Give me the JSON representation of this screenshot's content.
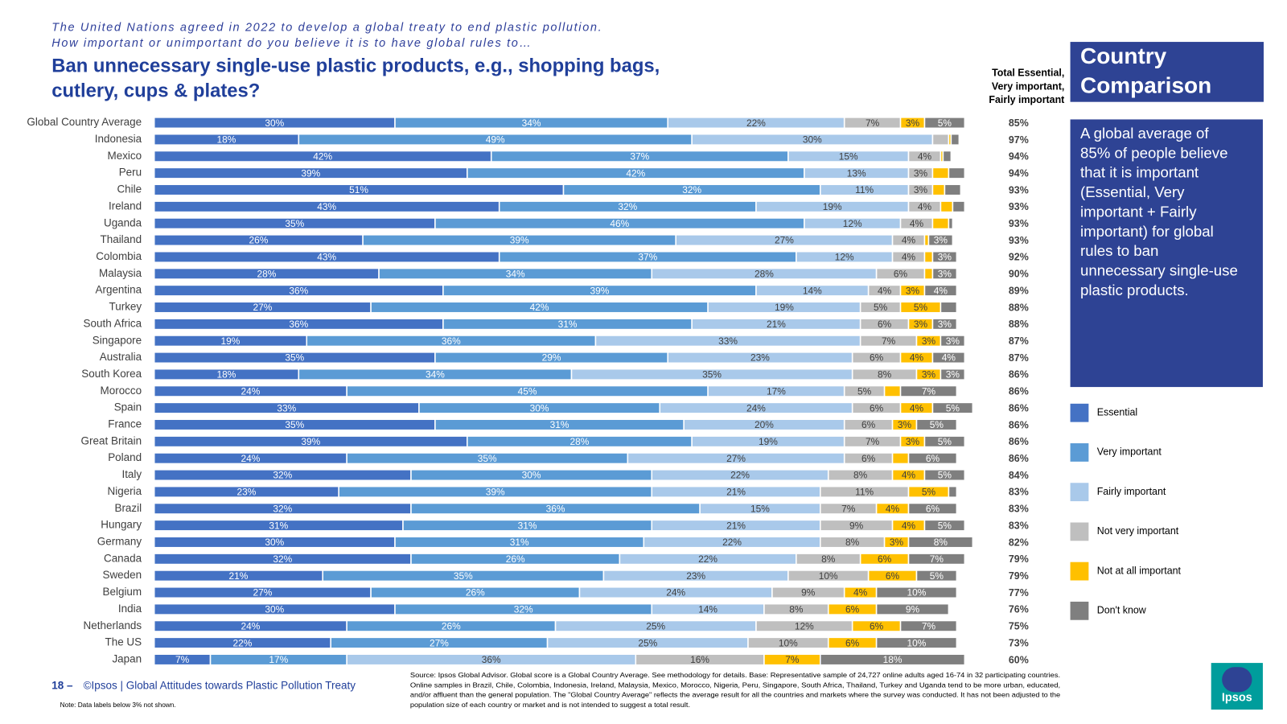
{
  "chart_data": {
    "type": "bar",
    "orientation": "horizontal",
    "stacked": true,
    "subtitle": [
      "The United Nations agreed in 2022 to develop a global treaty to end plastic pollution.",
      "How important or unimportant do you believe it is to have global rules to…"
    ],
    "title": [
      "Ban unnecessary single-use plastic products, e.g., shopping bags,",
      "cutlery, cups & plates?"
    ],
    "categories": [
      "Global Country Average",
      "Indonesia",
      "Mexico",
      "Peru",
      "Chile",
      "Ireland",
      "Uganda",
      "Thailand",
      "Colombia",
      "Malaysia",
      "Argentina",
      "Turkey",
      "South Africa",
      "Singapore",
      "Australia",
      "South Korea",
      "Morocco",
      "Spain",
      "France",
      "Great Britain",
      "Poland",
      "Italy",
      "Nigeria",
      "Brazil",
      "Hungary",
      "Germany",
      "Canada",
      "Sweden",
      "Belgium",
      "India",
      "Netherlands",
      "The US",
      "Japan"
    ],
    "series": [
      {
        "name": "Essential",
        "color": "#4472c4",
        "values": [
          30,
          18,
          42,
          39,
          51,
          43,
          35,
          26,
          43,
          28,
          36,
          27,
          36,
          19,
          35,
          18,
          24,
          33,
          35,
          39,
          24,
          32,
          23,
          32,
          31,
          30,
          32,
          21,
          27,
          30,
          24,
          22,
          7
        ],
        "value_labels": [
          "30%",
          "18%",
          "42%",
          "39%",
          "51%",
          "43%",
          "35%",
          "26%",
          "43%",
          "28%",
          "36%",
          "27%",
          "36%",
          "19%",
          "35%",
          "18%",
          "24%",
          "33%",
          "35%",
          "39%",
          "24%",
          "32%",
          "23%",
          "32%",
          "31%",
          "30%",
          "32%",
          "21%",
          "27%",
          "30%",
          "24%",
          "22%",
          "7%"
        ]
      },
      {
        "name": "Very important",
        "color": "#5b9bd5",
        "values": [
          34,
          49,
          37,
          42,
          32,
          32,
          46,
          39,
          37,
          34,
          39,
          42,
          31,
          36,
          29,
          34,
          45,
          30,
          31,
          28,
          35,
          30,
          39,
          36,
          31,
          31,
          26,
          35,
          26,
          32,
          26,
          27,
          17
        ],
        "value_labels": [
          "34%",
          "49%",
          "37%",
          "42%",
          "32%",
          "32%",
          "46%",
          "39%",
          "37%",
          "34%",
          "39%",
          "42%",
          "31%",
          "36%",
          "29%",
          "34%",
          "45%",
          "30%",
          "31%",
          "28%",
          "35%",
          "30%",
          "39%",
          "36%",
          "31%",
          "31%",
          "26%",
          "35%",
          "26%",
          "32%",
          "26%",
          "27%",
          "17%"
        ]
      },
      {
        "name": "Fairly important",
        "color": "#a9c9ea",
        "values": [
          22,
          30,
          15,
          13,
          11,
          19,
          12,
          27,
          12,
          28,
          14,
          19,
          21,
          33,
          23,
          35,
          17,
          24,
          20,
          19,
          27,
          22,
          21,
          15,
          21,
          22,
          22,
          23,
          24,
          14,
          25,
          25,
          36
        ],
        "value_labels": [
          "22%",
          "30%",
          "15%",
          "13%",
          "11%",
          "19%",
          "12%",
          "27%",
          "12%",
          "28%",
          "14%",
          "19%",
          "21%",
          "33%",
          "23%",
          "35%",
          "17%",
          "24%",
          "20%",
          "19%",
          "27%",
          "22%",
          "21%",
          "15%",
          "21%",
          "22%",
          "22%",
          "23%",
          "24%",
          "14%",
          "25%",
          "25%",
          "36%"
        ]
      },
      {
        "name": "Not very important",
        "color": "#bfbfbf",
        "values": [
          7,
          2,
          4,
          3,
          3,
          4,
          4,
          4,
          4,
          6,
          4,
          5,
          6,
          7,
          6,
          8,
          5,
          6,
          6,
          7,
          6,
          8,
          11,
          7,
          9,
          8,
          8,
          10,
          9,
          8,
          12,
          10,
          16
        ],
        "value_labels": [
          "7%",
          null,
          "4%",
          "3%",
          "3%",
          "4%",
          "4%",
          "4%",
          "4%",
          "6%",
          "4%",
          "5%",
          "6%",
          "7%",
          "6%",
          "8%",
          "5%",
          "6%",
          "6%",
          "7%",
          "6%",
          "8%",
          "11%",
          "7%",
          "9%",
          "8%",
          "8%",
          "10%",
          "9%",
          "8%",
          "12%",
          "10%",
          "16%"
        ]
      },
      {
        "name": "Not at all important",
        "color": "#ffc000",
        "values": [
          3,
          0.3,
          0.3,
          2,
          1.5,
          1.5,
          2,
          0.5,
          1,
          1,
          3,
          5,
          3,
          3,
          4,
          3,
          2,
          4,
          3,
          3,
          2,
          4,
          5,
          4,
          4,
          3,
          6,
          6,
          4,
          6,
          6,
          6,
          7
        ],
        "value_labels": [
          "3%",
          null,
          null,
          null,
          null,
          null,
          null,
          null,
          null,
          null,
          "3%",
          "5%",
          "3%",
          "3%",
          "4%",
          "3%",
          null,
          "4%",
          "3%",
          "3%",
          null,
          "4%",
          "5%",
          "4%",
          "4%",
          "3%",
          "6%",
          "6%",
          "4%",
          "6%",
          "6%",
          "6%",
          "7%"
        ]
      },
      {
        "name": "Don't know",
        "color": "#7f7f7f",
        "values": [
          5,
          1,
          1,
          2,
          2,
          1.5,
          0.5,
          3,
          3,
          3,
          4,
          2,
          3,
          3,
          4,
          3,
          7,
          5,
          5,
          5,
          6,
          5,
          1,
          6,
          5,
          8,
          7,
          5,
          10,
          9,
          7,
          10,
          18
        ],
        "value_labels": [
          "5%",
          null,
          null,
          null,
          null,
          null,
          null,
          "3%",
          "3%",
          "3%",
          "4%",
          null,
          "3%",
          "3%",
          "4%",
          "3%",
          "7%",
          "5%",
          "5%",
          "5%",
          "6%",
          "5%",
          null,
          "6%",
          "5%",
          "8%",
          "7%",
          "5%",
          "10%",
          "9%",
          "7%",
          "10%",
          "18%"
        ]
      }
    ],
    "totals": {
      "label": [
        "Total Essential,",
        "Very important,",
        "Fairly important"
      ],
      "values": [
        85,
        97,
        94,
        94,
        93,
        93,
        93,
        93,
        92,
        90,
        89,
        88,
        88,
        87,
        87,
        86,
        86,
        86,
        86,
        86,
        86,
        84,
        83,
        83,
        83,
        82,
        79,
        79,
        77,
        76,
        75,
        73,
        60
      ],
      "value_labels": [
        "85%",
        "97%",
        "94%",
        "94%",
        "93%",
        "93%",
        "93%",
        "93%",
        "92%",
        "90%",
        "89%",
        "88%",
        "88%",
        "87%",
        "87%",
        "86%",
        "86%",
        "86%",
        "86%",
        "86%",
        "86%",
        "84%",
        "83%",
        "83%",
        "83%",
        "82%",
        "79%",
        "79%",
        "77%",
        "76%",
        "75%",
        "73%",
        "60%"
      ]
    },
    "legend_position": "right"
  },
  "panel": {
    "heading": [
      "Country",
      "Comparison"
    ],
    "text": [
      "A global average of",
      "85% of people believe",
      "that it is important",
      "(Essential, Very",
      "important + Fairly",
      "important) for global",
      "rules to ban",
      "unnecessary single-use",
      "plastic products."
    ]
  },
  "footer": {
    "page": "18 –",
    "title": "©Ipsos | Global Attitudes towards Plastic Pollution Treaty",
    "note": "Note: Data labels below 3% not shown.",
    "source": [
      "Source: Ipsos Global Advisor. Global score is a Global Country Average. See methodology for details. Base: Representative sample of 24,727 online adults aged 16-74 in 32 participating countries.",
      "Online samples in Brazil, Chile, Colombia, Indonesia, Ireland, Malaysia, Mexico, Morocco, Nigeria, Peru, Singapore, South Africa, Thailand, Turkey and Uganda tend to be more urban, educated,",
      "and/or affluent than the general population. The \"Global Country Average\" reflects the average result for all the countries and markets where the survey was conducted. It has not been adjusted to the",
      "population size of each country or market and is not intended to suggest a total result."
    ],
    "logo": "Ipsos"
  }
}
